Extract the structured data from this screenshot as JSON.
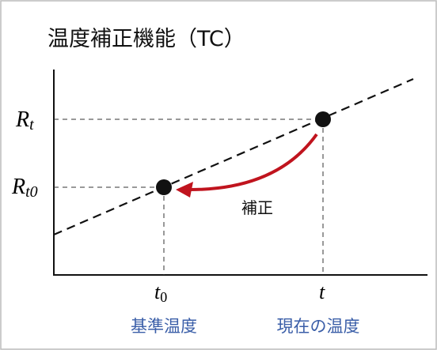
{
  "title": "温度補正機能（TC）",
  "y_labels": [
    {
      "symbol": "R",
      "subscript": "t"
    },
    {
      "symbol": "R",
      "subscript": "t0"
    }
  ],
  "x_labels": [
    {
      "symbol": "t",
      "subscript": "0"
    },
    {
      "symbol": "t"
    }
  ],
  "captions": [
    "基準温度",
    "現在の温度"
  ],
  "arrow_label": "補正"
}
